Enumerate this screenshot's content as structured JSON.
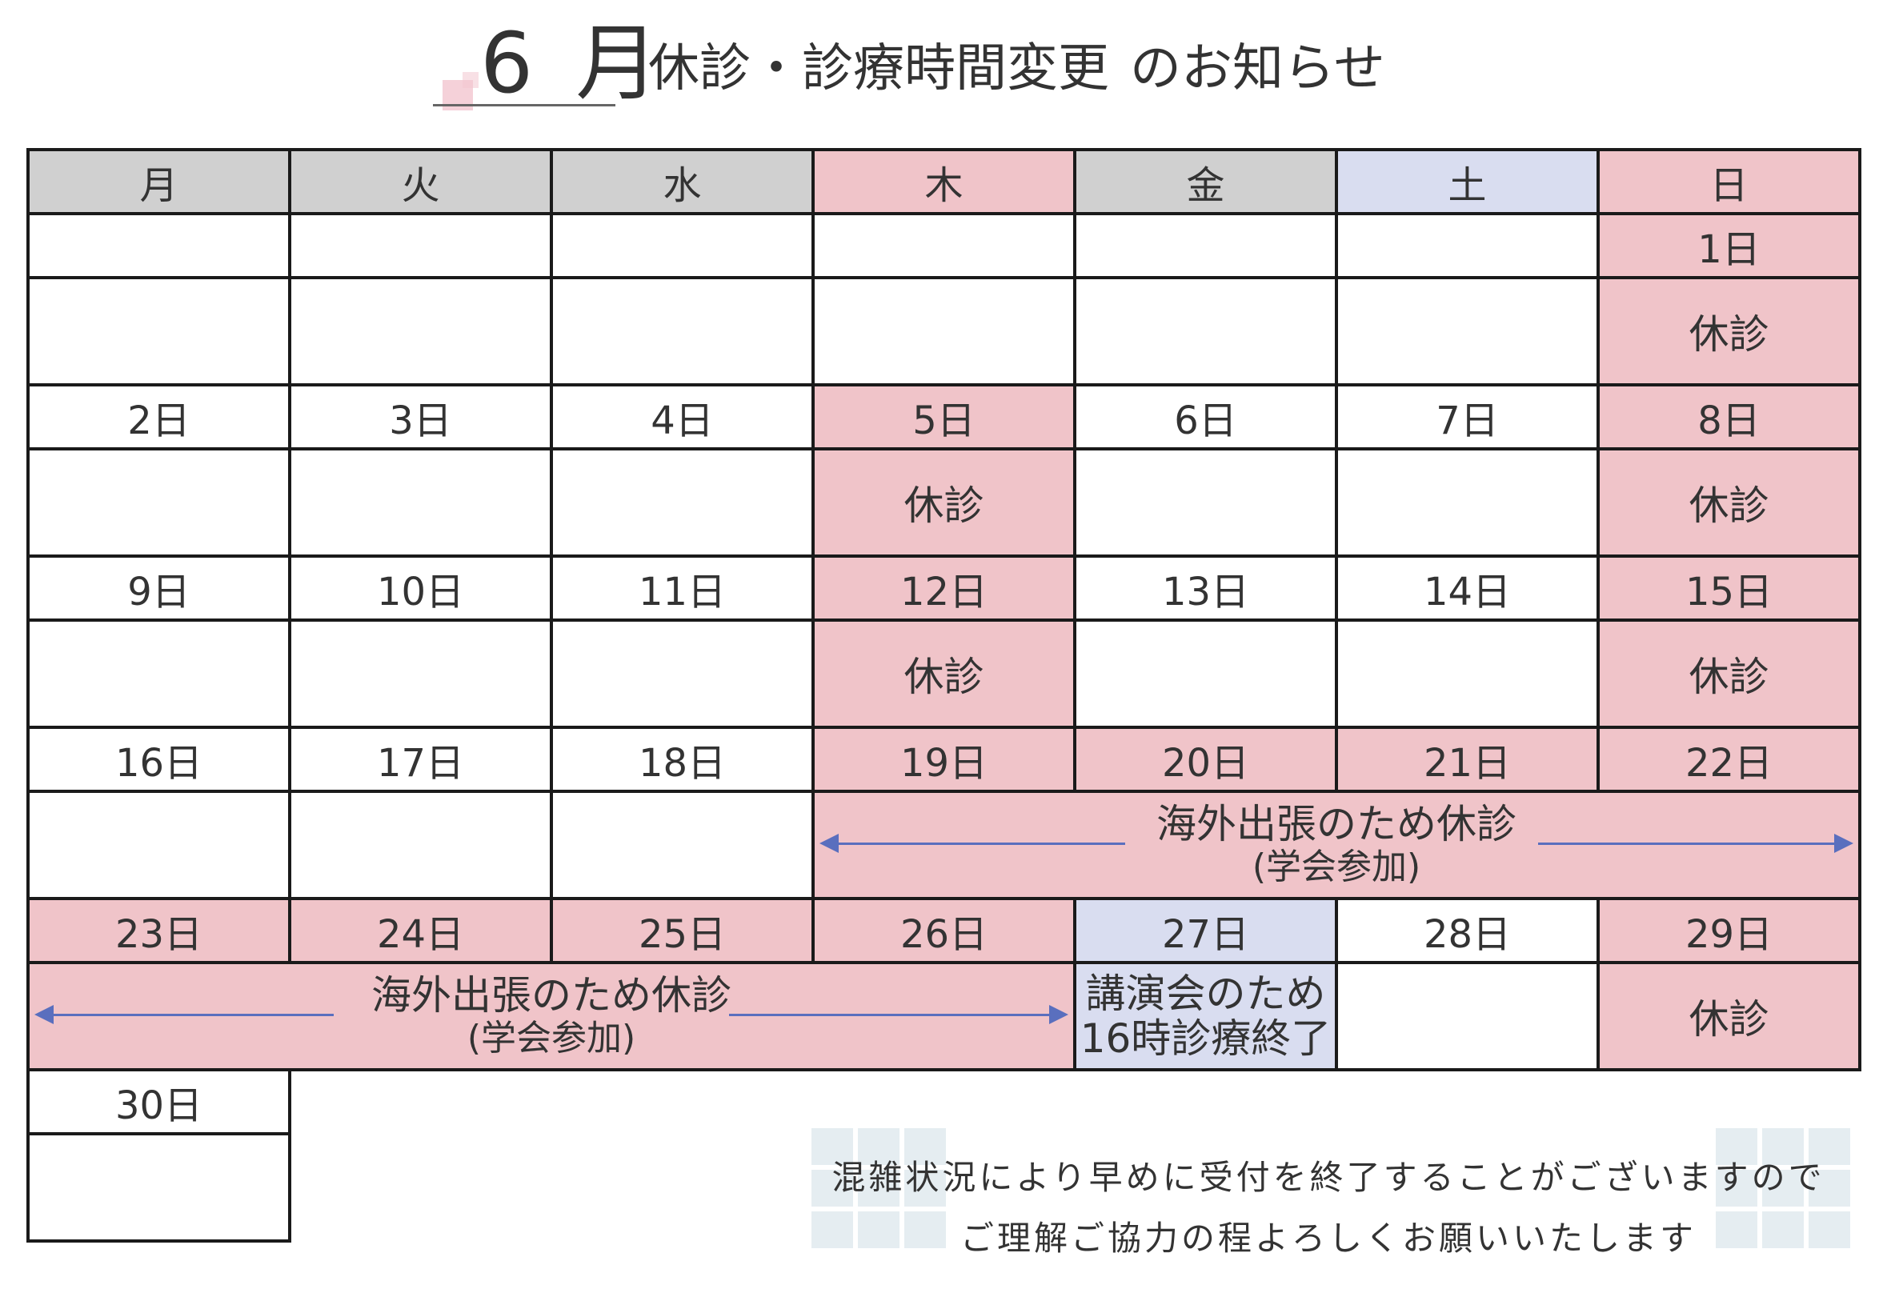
{
  "header": {
    "month": "6 月",
    "title": "休診・診療時間変更",
    "subtitle": "のお知らせ"
  },
  "weekdays": [
    "月",
    "火",
    "水",
    "木",
    "金",
    "土",
    "日"
  ],
  "colors": {
    "closed_pink": "#f0c4c9",
    "changed_blue": "#d9ddf0",
    "header_gray": "#d0d0d0",
    "arrow_blue": "#5a6fbe"
  },
  "weeks": [
    {
      "dates": [
        "",
        "",
        "",
        "",
        "",
        "",
        "1日"
      ],
      "content": [
        "",
        "",
        "",
        "",
        "",
        "",
        "休診"
      ]
    },
    {
      "dates": [
        "2日",
        "3日",
        "4日",
        "5日",
        "6日",
        "7日",
        "8日"
      ],
      "content": [
        "",
        "",
        "",
        "休診",
        "",
        "",
        "休診"
      ]
    },
    {
      "dates": [
        "9日",
        "10日",
        "11日",
        "12日",
        "13日",
        "14日",
        "15日"
      ],
      "content": [
        "",
        "",
        "",
        "休診",
        "",
        "",
        "休診"
      ]
    },
    {
      "dates": [
        "16日",
        "17日",
        "18日",
        "19日",
        "20日",
        "21日",
        "22日"
      ],
      "span": {
        "main": "海外出張のため休診",
        "sub": "(学会参加)"
      }
    },
    {
      "dates": [
        "23日",
        "24日",
        "25日",
        "26日",
        "27日",
        "28日",
        "29日"
      ],
      "span": {
        "main": "海外出張のため休診",
        "sub": "(学会参加)"
      },
      "lecture": {
        "line1": "講演会のため",
        "line2": "16時診療終了"
      },
      "sunday": "休診"
    },
    {
      "dates": [
        "30日"
      ]
    }
  ],
  "note": {
    "line1": "混雑状況により早めに受付を終了することがございますので",
    "line2": "ご理解ご協力の程よろしくお願いいたします"
  }
}
